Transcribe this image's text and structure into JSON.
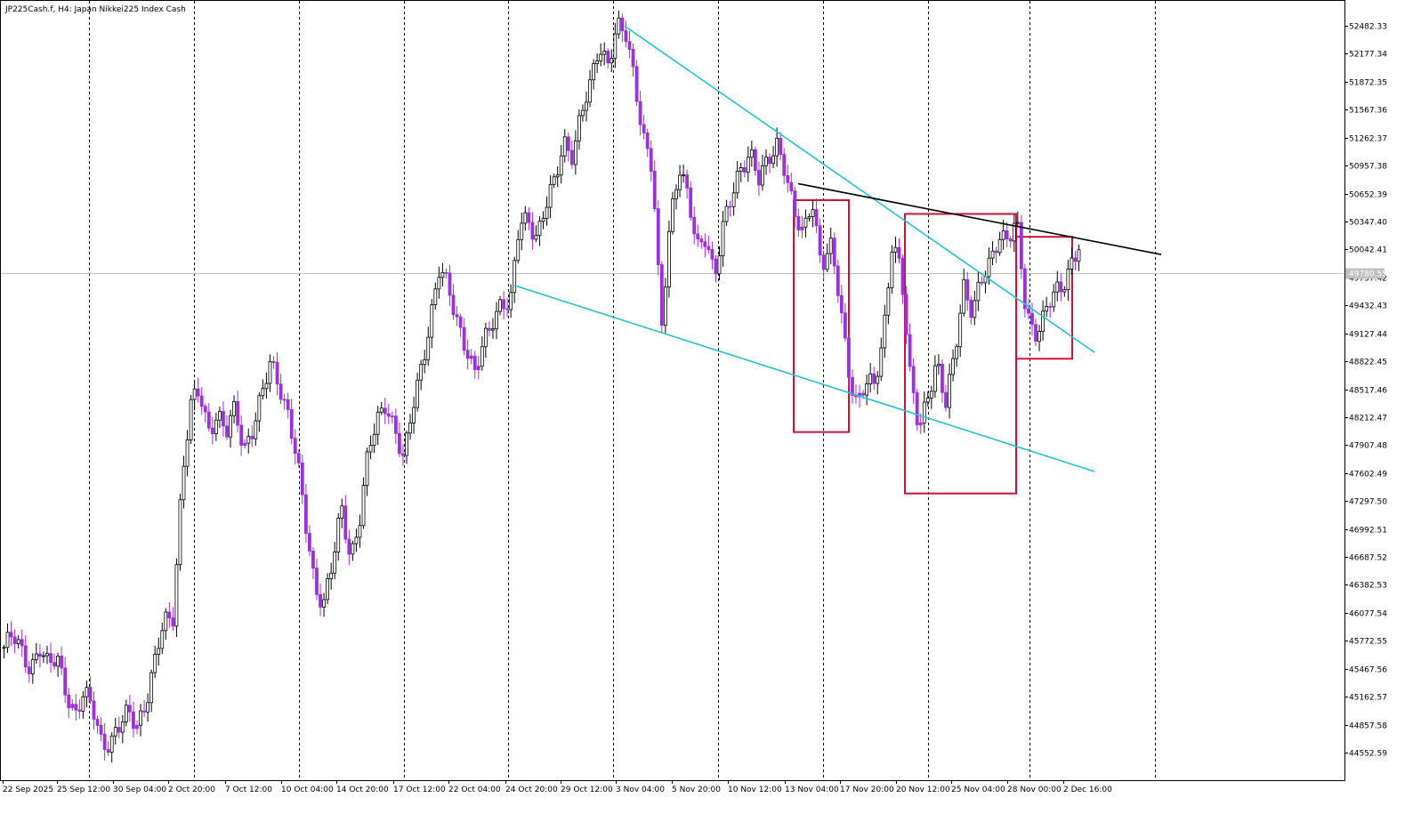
{
  "header": {
    "title": "JP225Cash.f, H4:  Japan Nikkei225 Index Cash"
  },
  "price_tag": {
    "value": "49780.55",
    "price": 49780.55,
    "color": "#c0c0c0"
  },
  "colors": {
    "bull_body": "#000000",
    "bear_body": "#9b30e0",
    "wick": "#000000",
    "channel": "#20c4d0",
    "resistance": "#000000",
    "box": "#d0103a",
    "grid": "#000000"
  },
  "chart_data": {
    "type": "candlestick",
    "title": "JP225Cash.f, H4:  Japan Nikkei225 Index Cash",
    "ylim": [
      44300,
      52700
    ],
    "y_ticks": [
      "52482.33",
      "52177.34",
      "51872.35",
      "51567.36",
      "51262.37",
      "50957.38",
      "50652.39",
      "50347.40",
      "50042.41",
      "49737.42",
      "49432.43",
      "49127.44",
      "48822.45",
      "48517.46",
      "48212.47",
      "47907.48",
      "47602.49",
      "47297.50",
      "46992.51",
      "46687.52",
      "46382.53",
      "46077.54",
      "45772.55",
      "45467.56",
      "45162.57",
      "44857.58",
      "44552.59"
    ],
    "x_labels": [
      "22 Sep 2025",
      "25 Sep 12:00",
      "30 Sep 04:00",
      "2 Oct 20:00",
      "7 Oct 12:00",
      "10 Oct 04:00",
      "14 Oct 20:00",
      "17 Oct 12:00",
      "22 Oct 04:00",
      "24 Oct 20:00",
      "29 Oct 12:00",
      "3 Nov 04:00",
      "5 Nov 20:00",
      "10 Nov 12:00",
      "13 Nov 04:00",
      "17 Nov 20:00",
      "20 Nov 12:00",
      "25 Nov 04:00",
      "28 Nov 00:00",
      "2 Dec 16:00"
    ],
    "grid": "vertical dashed separators",
    "series": [
      {
        "type": "candlestick",
        "close_path": [
          45700,
          45800,
          45650,
          45500,
          45700,
          45450,
          45600,
          45250,
          44950,
          45150,
          45050,
          44700,
          44650,
          44800,
          45000,
          44900,
          45100,
          45500,
          46000,
          46050,
          47500,
          48300,
          48500,
          48100,
          48250,
          48000,
          48300,
          47900,
          48100,
          48400,
          48800,
          48600,
          48250,
          47700,
          47000,
          46400,
          46200,
          46600,
          47200,
          46700,
          47100,
          47800,
          48150,
          48400,
          48100,
          47700,
          48300,
          48800,
          49300,
          49800,
          49600,
          49300,
          49000,
          48650,
          49000,
          49300,
          49500,
          49400,
          50300,
          50400,
          50200,
          50500,
          50750,
          51250,
          51100,
          51500,
          51800,
          52300,
          52100,
          52450,
          52350,
          51900,
          51300,
          50900,
          49100,
          50400,
          51000,
          50600,
          50000,
          50200,
          49800,
          50300,
          50600,
          50950,
          51150,
          50800,
          50950,
          51200,
          50950,
          50400,
          50150,
          50600,
          49900,
          50100,
          49500,
          48750,
          48400,
          48600,
          48500,
          49100,
          50200,
          49800,
          48600,
          48100,
          48500,
          48800,
          48300,
          48900,
          49700,
          49350,
          49650,
          49900,
          50250,
          50150,
          50300,
          49400,
          49150,
          49300,
          49500,
          49600,
          49900,
          50100
        ],
        "bearish_close_points": [
          3,
          6,
          8,
          11,
          12,
          15,
          22,
          25,
          27,
          32,
          33,
          34,
          35,
          39,
          44,
          45,
          49,
          50,
          51,
          52,
          53,
          60,
          70,
          72,
          73,
          74,
          77,
          78,
          82,
          89,
          90,
          92,
          94,
          95,
          96,
          98,
          102,
          103,
          111,
          115,
          116,
          117
        ]
      }
    ],
    "annotations": {
      "channel_upper": {
        "from": [
          "3 Nov 04:00",
          52480
        ],
        "to": [
          "2 Dec 16:00",
          48920
        ]
      },
      "channel_lower": {
        "from": [
          "24 Oct 20:00",
          49650
        ],
        "to": [
          "2 Dec 16:00",
          47620
        ]
      },
      "resistance_line": {
        "from": [
          "13 Nov 04:00",
          50760
        ],
        "to": [
          "2 Dec 16:00",
          49890
        ]
      },
      "boxes": [
        {
          "from": "13 Nov 04:00",
          "to": "17 Nov 20:00",
          "high": 50580,
          "low": 48050
        },
        {
          "from": "20 Nov 12:00",
          "to": "28 Nov 00:00",
          "high": 50430,
          "low": 47380
        },
        {
          "from": "28 Nov 00:00",
          "to": "2 Dec 16:00",
          "high": 50180,
          "low": 48850
        }
      ]
    }
  }
}
